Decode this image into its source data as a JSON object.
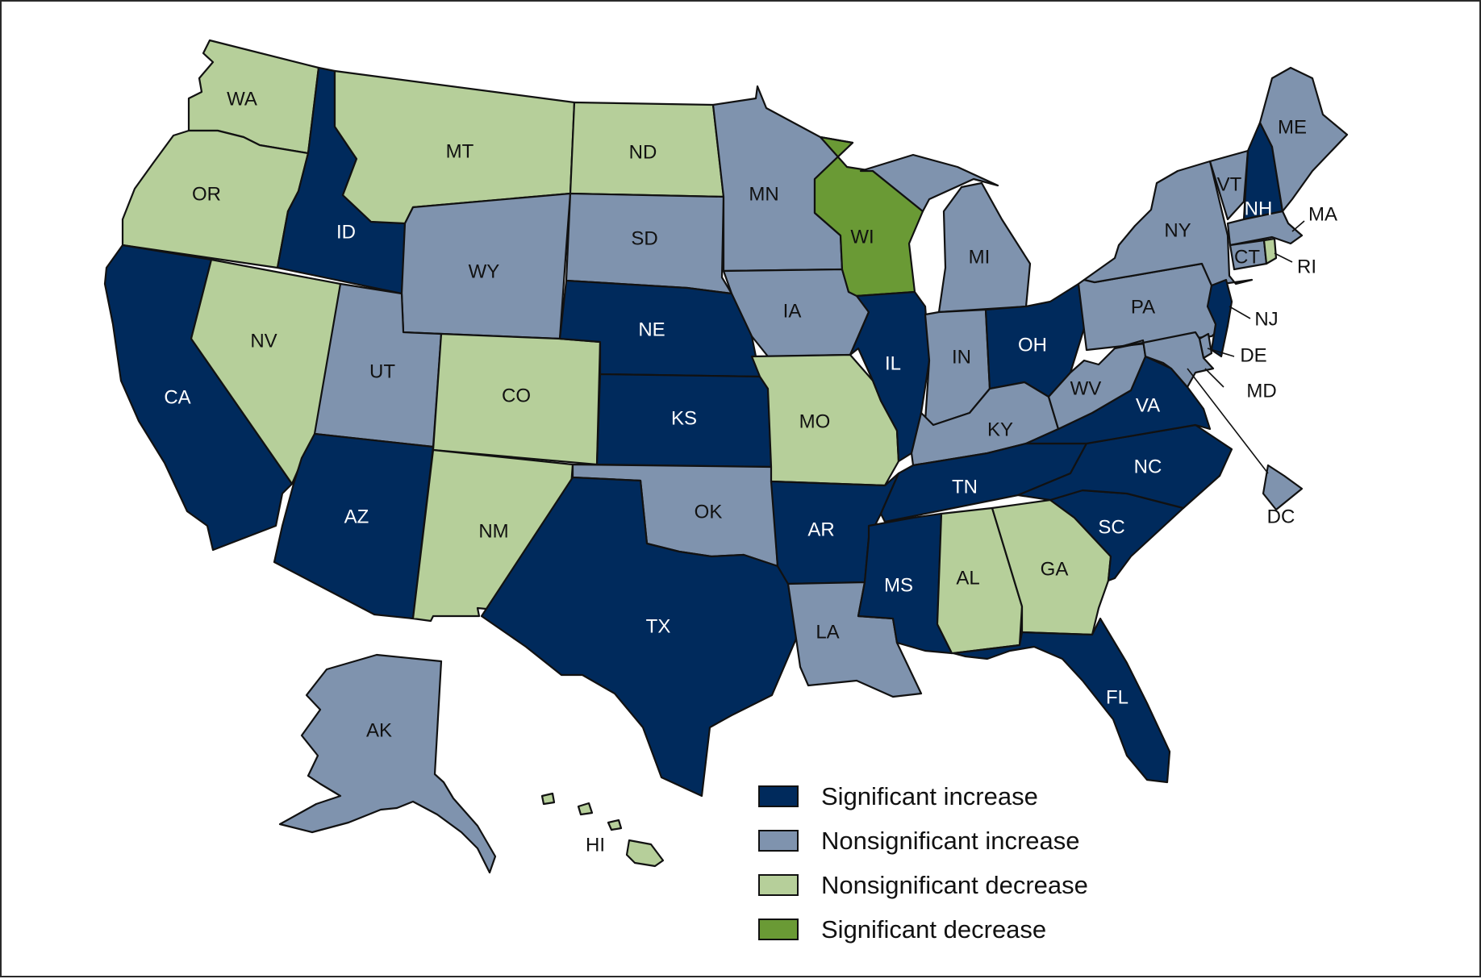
{
  "colors": {
    "sig_increase": "#002a5c",
    "nonsig_increase": "#7f93ae",
    "nonsig_decrease": "#b6cf9a",
    "sig_decrease": "#6a9a35"
  },
  "legend": [
    {
      "label": "Significant increase",
      "category": "sig_increase"
    },
    {
      "label": "Nonsignificant increase",
      "category": "nonsig_increase"
    },
    {
      "label": "Nonsignificant decrease",
      "category": "nonsig_decrease"
    },
    {
      "label": "Significant decrease",
      "category": "sig_decrease"
    }
  ],
  "states": {
    "WA": "nonsig_decrease",
    "OR": "nonsig_decrease",
    "CA": "sig_increase",
    "NV": "nonsig_decrease",
    "ID": "sig_increase",
    "MT": "nonsig_decrease",
    "WY": "nonsig_increase",
    "UT": "nonsig_increase",
    "AZ": "sig_increase",
    "CO": "nonsig_decrease",
    "NM": "nonsig_decrease",
    "ND": "nonsig_decrease",
    "SD": "nonsig_increase",
    "NE": "sig_increase",
    "KS": "sig_increase",
    "OK": "nonsig_increase",
    "TX": "sig_increase",
    "MN": "nonsig_increase",
    "IA": "nonsig_increase",
    "MO": "nonsig_decrease",
    "AR": "sig_increase",
    "LA": "nonsig_increase",
    "WI": "sig_decrease",
    "IL": "sig_increase",
    "MI": "nonsig_increase",
    "IN": "nonsig_increase",
    "OH": "sig_increase",
    "KY": "nonsig_increase",
    "TN": "sig_increase",
    "MS": "sig_increase",
    "AL": "nonsig_decrease",
    "GA": "nonsig_decrease",
    "FL": "sig_increase",
    "SC": "sig_increase",
    "NC": "sig_increase",
    "VA": "sig_increase",
    "WV": "nonsig_increase",
    "PA": "nonsig_increase",
    "NY": "nonsig_increase",
    "VT": "nonsig_increase",
    "NH": "sig_increase",
    "ME": "nonsig_increase",
    "MA": "nonsig_increase",
    "CT": "nonsig_increase",
    "RI": "nonsig_decrease",
    "NJ": "sig_increase",
    "DE": "nonsig_increase",
    "MD": "nonsig_increase",
    "DC": "nonsig_increase",
    "AK": "nonsig_increase",
    "HI": "nonsig_decrease"
  }
}
